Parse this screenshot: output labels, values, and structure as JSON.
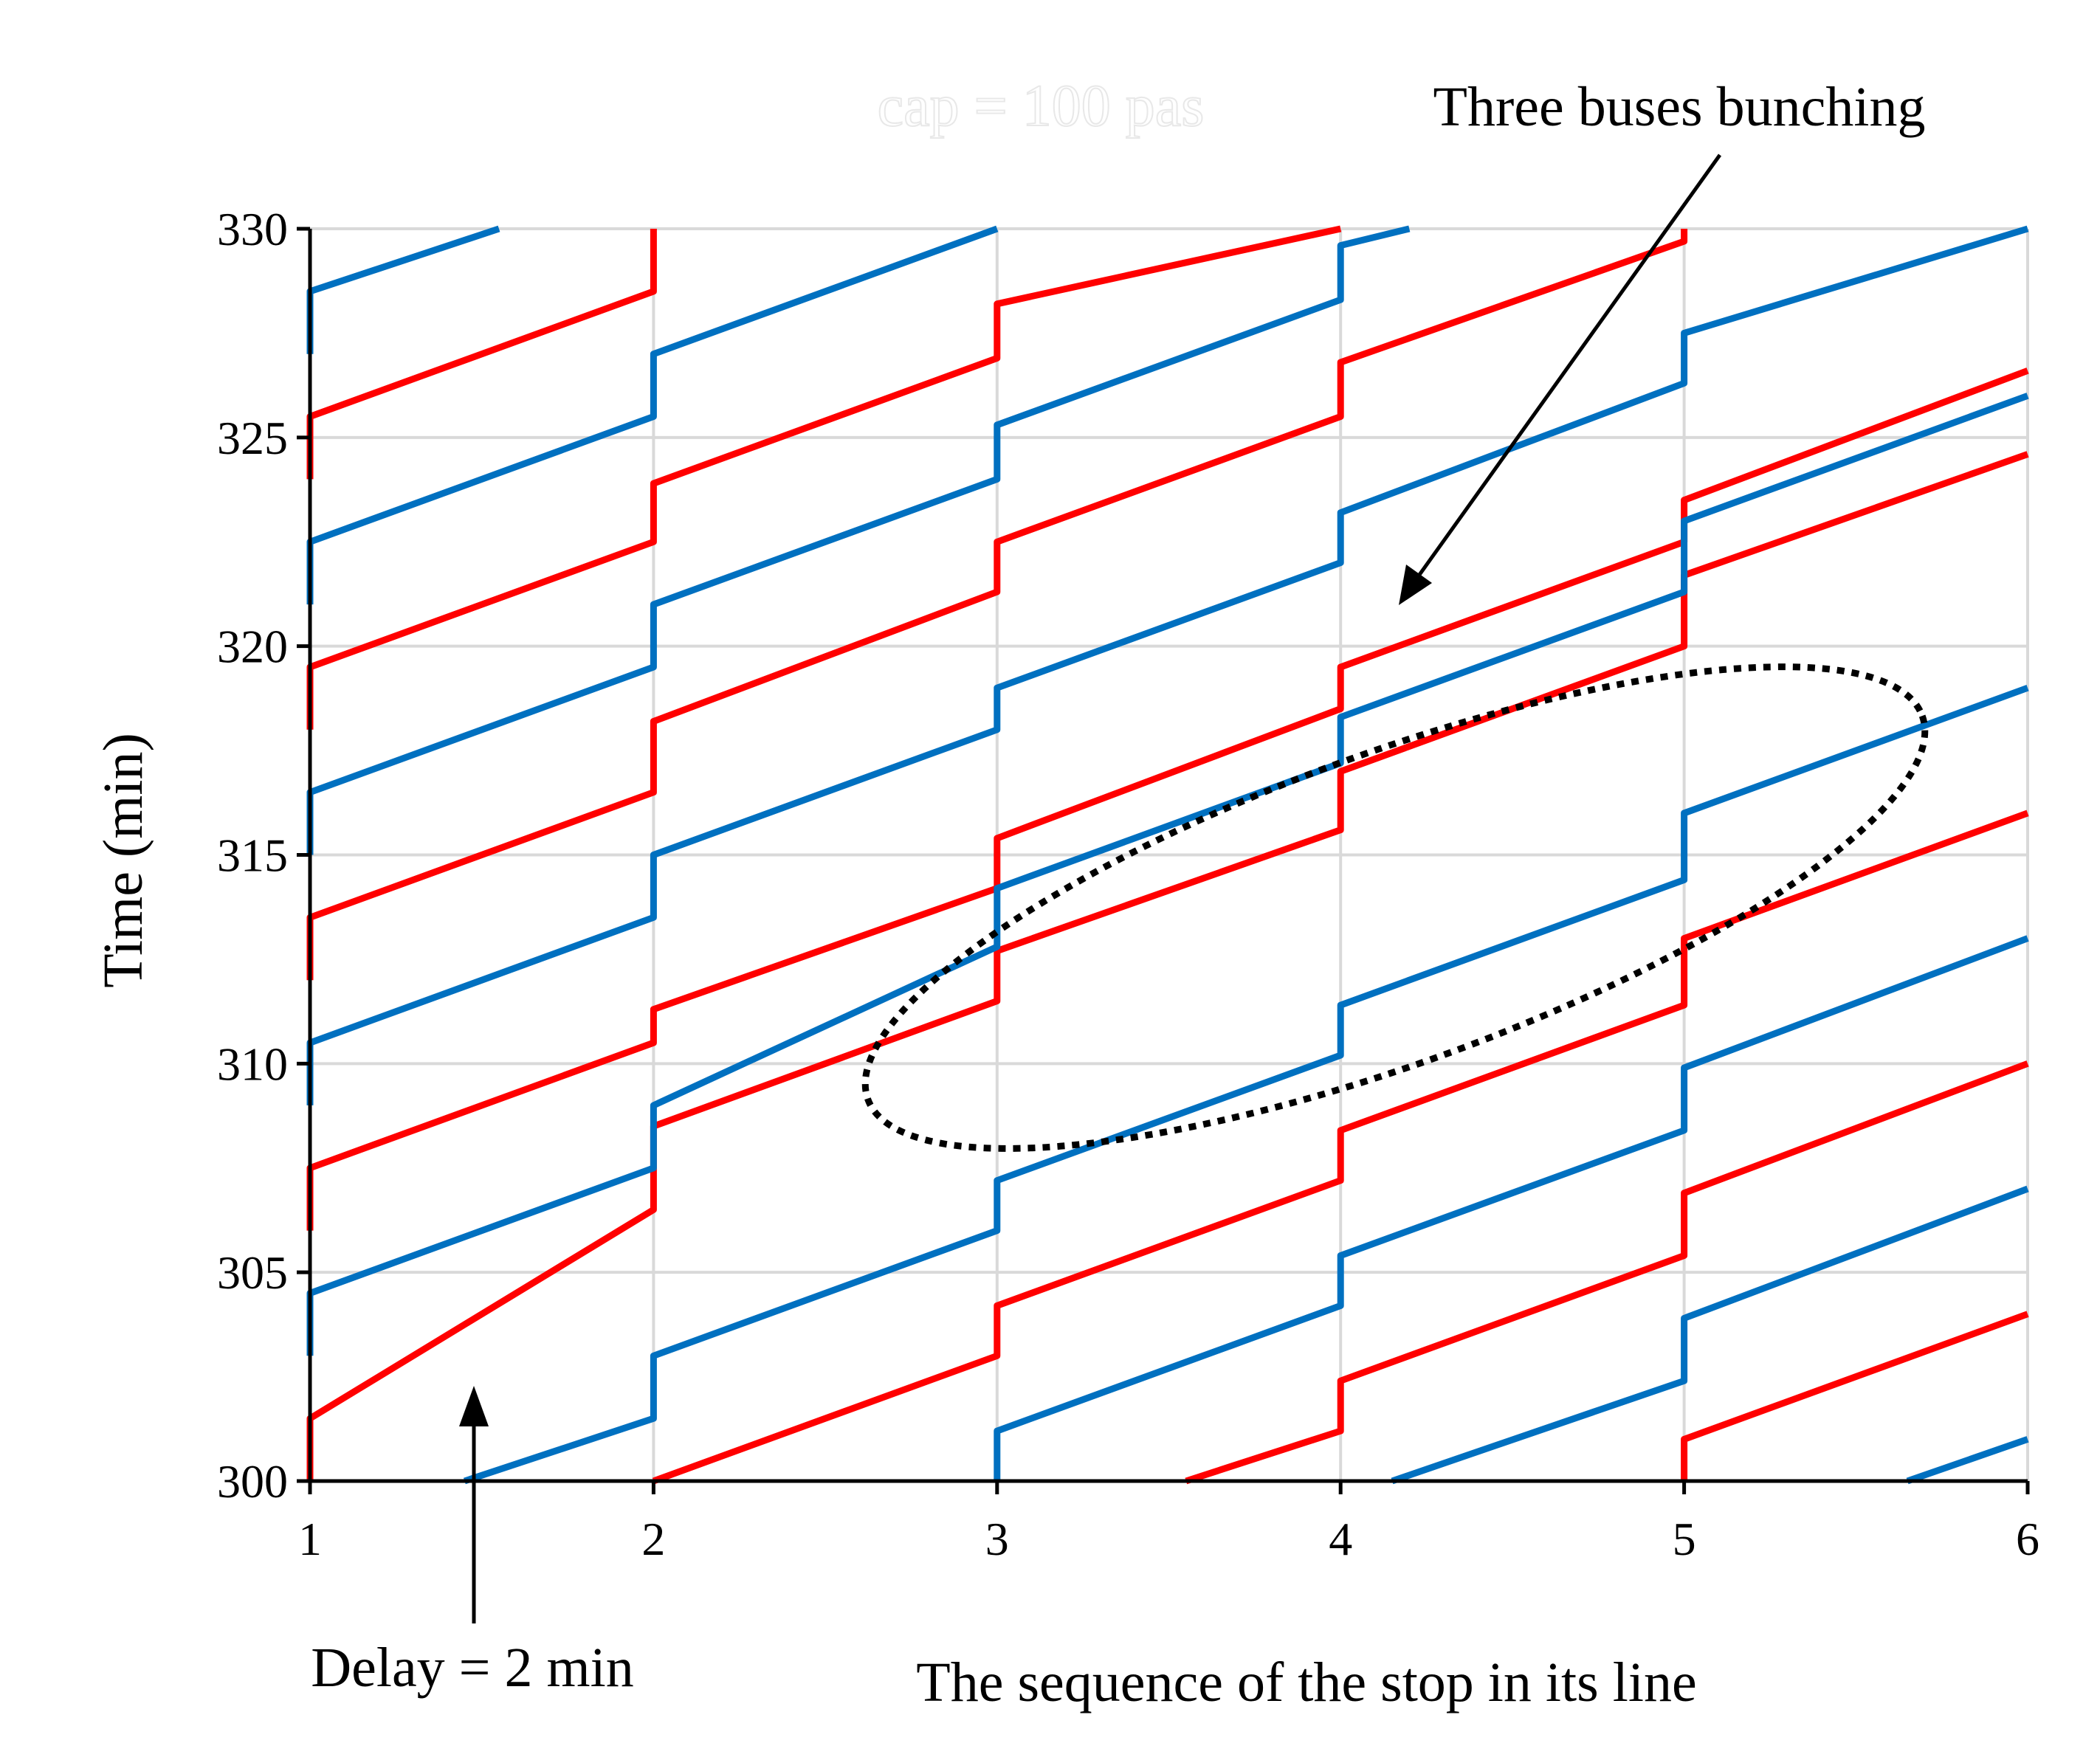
{
  "chart_data": {
    "type": "line",
    "title": "cap = 100 pas",
    "xlabel": "The sequence of the stop in its line",
    "ylabel": "Time (min)",
    "xlim": [
      1,
      6
    ],
    "ylim": [
      300,
      330
    ],
    "x_ticks": [
      1,
      2,
      3,
      4,
      5,
      6
    ],
    "y_ticks": [
      300,
      305,
      310,
      315,
      320,
      325,
      330
    ],
    "grid": true,
    "colors": {
      "red": "#ff0000",
      "blue": "#0070c0",
      "grid": "#d9d9d9"
    },
    "annotations": {
      "bunching": "Three buses bunching",
      "delay": "Delay = 2 min"
    },
    "series": [
      {
        "color": "red",
        "points": [
          [
            1,
            300
          ],
          [
            1,
            301.5
          ],
          [
            2,
            306.5
          ],
          [
            2,
            308.5
          ],
          [
            3,
            311.5
          ],
          [
            3,
            312.7
          ],
          [
            4,
            315.6
          ],
          [
            4,
            317
          ],
          [
            5,
            320
          ],
          [
            5,
            321.7
          ],
          [
            6,
            324.6
          ]
        ]
      },
      {
        "color": "red",
        "points": [
          [
            1,
            306
          ],
          [
            1,
            307.5
          ],
          [
            2,
            310.5
          ],
          [
            2,
            311.3
          ],
          [
            3,
            314.2
          ],
          [
            3,
            315.4
          ],
          [
            4,
            318.5
          ],
          [
            4,
            319.5
          ],
          [
            5,
            322.5
          ],
          [
            5,
            323.5
          ],
          [
            6,
            326.6
          ]
        ]
      },
      {
        "color": "red",
        "points": [
          [
            1,
            312
          ],
          [
            1,
            313.5
          ],
          [
            2,
            316.5
          ],
          [
            2,
            318.2
          ],
          [
            3,
            321.3
          ],
          [
            3,
            322.5
          ],
          [
            4,
            325.5
          ],
          [
            4,
            326.8
          ],
          [
            5,
            329.7
          ],
          [
            5,
            330
          ]
        ]
      },
      {
        "color": "red",
        "points": [
          [
            1,
            318
          ],
          [
            1,
            319.5
          ],
          [
            2,
            322.5
          ],
          [
            2,
            323.9
          ],
          [
            3,
            326.9
          ],
          [
            3,
            328.2
          ],
          [
            4,
            330.1
          ]
        ]
      },
      {
        "color": "red",
        "points": [
          [
            1,
            324
          ],
          [
            1,
            325.5
          ],
          [
            2,
            328.5
          ],
          [
            2,
            330
          ]
        ]
      },
      {
        "color": "red",
        "points": [
          [
            2,
            300
          ],
          [
            3,
            303
          ],
          [
            3,
            304.2
          ],
          [
            4,
            307.2
          ],
          [
            4,
            308.4
          ],
          [
            5,
            311.4
          ],
          [
            5,
            313
          ],
          [
            6,
            316
          ]
        ]
      },
      {
        "color": "red",
        "points": [
          [
            3.55,
            300
          ],
          [
            4,
            301.2
          ],
          [
            4,
            302.4
          ],
          [
            5,
            305.4
          ],
          [
            5,
            306.9
          ],
          [
            6,
            310
          ]
        ]
      },
      {
        "color": "red",
        "points": [
          [
            5,
            300
          ],
          [
            5,
            301
          ],
          [
            6,
            304
          ]
        ]
      },
      {
        "color": "blue",
        "points": [
          [
            1,
            303
          ],
          [
            1,
            304.5
          ],
          [
            2,
            307.5
          ],
          [
            2,
            309
          ],
          [
            3,
            312.8
          ],
          [
            3,
            314.2
          ],
          [
            4,
            317.2
          ],
          [
            4,
            318.3
          ],
          [
            5,
            321.3
          ],
          [
            5,
            323
          ],
          [
            6,
            326
          ]
        ]
      },
      {
        "color": "blue",
        "points": [
          [
            1,
            309
          ],
          [
            1,
            310.5
          ],
          [
            2,
            313.5
          ],
          [
            2,
            315
          ],
          [
            3,
            318
          ],
          [
            3,
            319
          ],
          [
            4,
            322
          ],
          [
            4,
            323.2
          ],
          [
            5,
            326.3
          ],
          [
            5,
            327.5
          ],
          [
            6,
            330.5
          ]
        ]
      },
      {
        "color": "blue",
        "points": [
          [
            1,
            315
          ],
          [
            1,
            316.5
          ],
          [
            2,
            319.5
          ],
          [
            2,
            321
          ],
          [
            3,
            324
          ],
          [
            3,
            325.3
          ],
          [
            4,
            328.3
          ],
          [
            4,
            329.6
          ],
          [
            4.2,
            330.1
          ]
        ]
      },
      {
        "color": "blue",
        "points": [
          [
            1,
            321
          ],
          [
            1,
            322.5
          ],
          [
            2,
            325.5
          ],
          [
            2,
            327
          ],
          [
            3,
            330
          ]
        ]
      },
      {
        "color": "blue",
        "points": [
          [
            1,
            327
          ],
          [
            1,
            328.5
          ],
          [
            1.55,
            330.1
          ]
        ]
      },
      {
        "color": "blue",
        "points": [
          [
            1.45,
            300
          ],
          [
            2,
            301.5
          ],
          [
            2,
            303
          ],
          [
            3,
            306
          ],
          [
            3,
            307.2
          ],
          [
            4,
            310.2
          ],
          [
            4,
            311.4
          ],
          [
            5,
            314.4
          ],
          [
            5,
            316
          ],
          [
            6,
            319
          ]
        ]
      },
      {
        "color": "blue",
        "points": [
          [
            3,
            300
          ],
          [
            3,
            301.2
          ],
          [
            4,
            304.2
          ],
          [
            4,
            305.4
          ],
          [
            5,
            308.4
          ],
          [
            5,
            309.9
          ],
          [
            6,
            313
          ]
        ]
      },
      {
        "color": "blue",
        "points": [
          [
            4.15,
            300
          ],
          [
            5,
            302.4
          ],
          [
            5,
            303.9
          ],
          [
            6,
            307
          ]
        ]
      },
      {
        "color": "blue",
        "points": [
          [
            5.65,
            300
          ],
          [
            6,
            301
          ]
        ]
      }
    ]
  }
}
